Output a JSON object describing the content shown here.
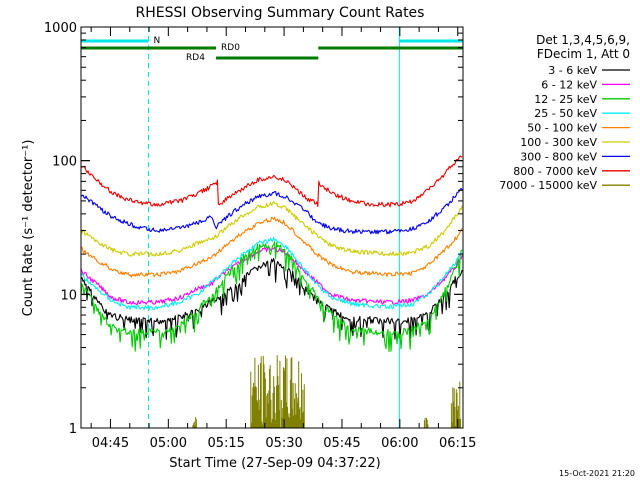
{
  "chart_data": {
    "type": "line",
    "title": "RHESSI Observing Summary Count Rates",
    "xlabel": "Start Time (27-Sep-09 04:37:22)",
    "ylabel": "Count Rate (s⁻¹ detector⁻¹)",
    "y_scale": "log",
    "ylim": [
      1,
      1000
    ],
    "x_unit": "minutes since 04:37:22",
    "xlim": [
      0,
      99
    ],
    "x_ticks": [
      "04:45",
      "05:00",
      "05:15",
      "05:30",
      "05:45",
      "06:00",
      "06:15"
    ],
    "y_ticks": [
      "1",
      "10",
      "100",
      "1000"
    ],
    "legend_header": [
      "Det 1,3,4,5,6,9,",
      "FDecim 1, Att 0"
    ],
    "legend_position": "right",
    "footer": "15-Oct-2021 21:20",
    "annotations": [
      {
        "label": "N",
        "color": "#00e5e5",
        "kind": "night",
        "segments": [
          [
            0,
            17.5
          ],
          [
            82.5,
            99
          ]
        ]
      },
      {
        "label": "RD0",
        "color": "#007a00",
        "kind": "bar",
        "segments": [
          [
            0,
            35
          ],
          [
            61.5,
            99
          ]
        ]
      },
      {
        "label": "RD4",
        "color": "#007a00",
        "kind": "bar",
        "segments": [
          [
            35,
            61.5
          ]
        ]
      }
    ],
    "vertical_lines": [
      {
        "x": 0,
        "color": "#00e5e5",
        "style": "solid"
      },
      {
        "x": 17.5,
        "color": "#00e5e5",
        "style": "dashed"
      },
      {
        "x": 82.5,
        "color": "#00e5e5",
        "style": "solid"
      },
      {
        "x": 99,
        "color": "#00e5e5",
        "style": "dashed"
      }
    ],
    "series": [
      {
        "name": "3 - 6 keV",
        "color": "#000000",
        "points": [
          [
            0,
            13
          ],
          [
            3,
            10
          ],
          [
            6,
            7.5
          ],
          [
            9,
            6.8
          ],
          [
            14,
            6.3
          ],
          [
            20,
            6.3
          ],
          [
            26,
            6.8
          ],
          [
            30,
            7.5
          ],
          [
            34,
            9
          ],
          [
            35,
            9
          ],
          [
            38,
            10.5
          ],
          [
            42,
            13
          ],
          [
            46,
            16
          ],
          [
            50,
            17.5
          ],
          [
            53,
            16
          ],
          [
            56,
            13
          ],
          [
            59,
            10.5
          ],
          [
            61,
            9
          ],
          [
            61.5,
            9
          ],
          [
            65,
            7.5
          ],
          [
            70,
            6.6
          ],
          [
            78,
            6.3
          ],
          [
            85,
            6.3
          ],
          [
            90,
            7.2
          ],
          [
            94,
            9.5
          ],
          [
            97,
            13
          ],
          [
            99,
            15.5
          ]
        ]
      },
      {
        "name": "6 - 12 keV",
        "color": "#ff00ff",
        "points": [
          [
            0,
            15
          ],
          [
            4,
            12
          ],
          [
            8,
            9.5
          ],
          [
            12,
            8.7
          ],
          [
            20,
            8.7
          ],
          [
            26,
            9.5
          ],
          [
            30,
            11
          ],
          [
            34,
            12
          ],
          [
            35,
            13
          ],
          [
            38,
            15
          ],
          [
            42,
            18
          ],
          [
            46,
            21
          ],
          [
            50,
            22
          ],
          [
            53,
            20.5
          ],
          [
            56,
            17
          ],
          [
            59,
            14
          ],
          [
            61,
            12.5
          ],
          [
            61.5,
            12
          ],
          [
            65,
            10
          ],
          [
            70,
            9
          ],
          [
            80,
            8.7
          ],
          [
            86,
            9
          ],
          [
            90,
            10
          ],
          [
            94,
            13
          ],
          [
            97,
            16
          ],
          [
            99,
            20
          ]
        ]
      },
      {
        "name": "12 - 25 keV",
        "color": "#00cc00",
        "points": [
          [
            0,
            12
          ],
          [
            3,
            9
          ],
          [
            6,
            6.5
          ],
          [
            9,
            5.5
          ],
          [
            14,
            5.2
          ],
          [
            20,
            5.2
          ],
          [
            26,
            6
          ],
          [
            30,
            7.5
          ],
          [
            34,
            10
          ],
          [
            35,
            11
          ],
          [
            38,
            14
          ],
          [
            42,
            19
          ],
          [
            46,
            23
          ],
          [
            50,
            24
          ],
          [
            53,
            21
          ],
          [
            56,
            16
          ],
          [
            59,
            12
          ],
          [
            61,
            9.5
          ],
          [
            61.5,
            9
          ],
          [
            65,
            7
          ],
          [
            70,
            5.5
          ],
          [
            78,
            5.2
          ],
          [
            85,
            5.3
          ],
          [
            90,
            6.5
          ],
          [
            94,
            10
          ],
          [
            97,
            16
          ],
          [
            99,
            22
          ]
        ]
      },
      {
        "name": "25 - 50 keV",
        "color": "#00eeee",
        "points": [
          [
            0,
            14
          ],
          [
            4,
            11
          ],
          [
            8,
            9
          ],
          [
            12,
            8
          ],
          [
            20,
            8
          ],
          [
            26,
            8.8
          ],
          [
            30,
            10
          ],
          [
            34,
            12.5
          ],
          [
            35,
            13
          ],
          [
            38,
            16
          ],
          [
            42,
            20
          ],
          [
            46,
            24
          ],
          [
            50,
            26
          ],
          [
            53,
            23
          ],
          [
            56,
            18
          ],
          [
            59,
            14
          ],
          [
            61,
            12
          ],
          [
            61.5,
            11.5
          ],
          [
            65,
            9.5
          ],
          [
            70,
            8.5
          ],
          [
            80,
            8
          ],
          [
            86,
            8.5
          ],
          [
            90,
            10
          ],
          [
            94,
            13.5
          ],
          [
            97,
            17
          ],
          [
            99,
            21
          ]
        ]
      },
      {
        "name": "50 - 100 keV",
        "color": "#ff8000",
        "points": [
          [
            0,
            22
          ],
          [
            4,
            18
          ],
          [
            8,
            15.5
          ],
          [
            12,
            14
          ],
          [
            20,
            14
          ],
          [
            26,
            15
          ],
          [
            30,
            17
          ],
          [
            34,
            19
          ],
          [
            35,
            20
          ],
          [
            38,
            24
          ],
          [
            42,
            29
          ],
          [
            46,
            34
          ],
          [
            50,
            37
          ],
          [
            53,
            34
          ],
          [
            56,
            28
          ],
          [
            59,
            23
          ],
          [
            61,
            20
          ],
          [
            61.5,
            19.5
          ],
          [
            65,
            16.5
          ],
          [
            70,
            14.8
          ],
          [
            80,
            14
          ],
          [
            86,
            14.5
          ],
          [
            90,
            16.5
          ],
          [
            94,
            21
          ],
          [
            97,
            26
          ],
          [
            99,
            31
          ]
        ]
      },
      {
        "name": "100 - 300 keV",
        "color": "#cccc00",
        "points": [
          [
            0,
            30
          ],
          [
            4,
            25
          ],
          [
            8,
            21.5
          ],
          [
            12,
            20
          ],
          [
            20,
            20
          ],
          [
            26,
            21.5
          ],
          [
            30,
            24
          ],
          [
            34,
            26
          ],
          [
            35,
            27
          ],
          [
            38,
            32
          ],
          [
            42,
            39
          ],
          [
            46,
            45
          ],
          [
            50,
            48
          ],
          [
            53,
            44
          ],
          [
            56,
            37
          ],
          [
            59,
            31
          ],
          [
            61,
            28
          ],
          [
            61.5,
            27
          ],
          [
            65,
            23
          ],
          [
            70,
            21
          ],
          [
            80,
            20
          ],
          [
            86,
            20.5
          ],
          [
            90,
            23
          ],
          [
            94,
            29
          ],
          [
            97,
            38
          ],
          [
            99,
            47
          ]
        ]
      },
      {
        "name": "300 - 800 keV",
        "color": "#0000ee",
        "points": [
          [
            0,
            57
          ],
          [
            4,
            46
          ],
          [
            8,
            38
          ],
          [
            12,
            34
          ],
          [
            16,
            31
          ],
          [
            20,
            30
          ],
          [
            26,
            31.5
          ],
          [
            30,
            34
          ],
          [
            34,
            38
          ],
          [
            35,
            32
          ],
          [
            38,
            38
          ],
          [
            42,
            47
          ],
          [
            46,
            54
          ],
          [
            50,
            57
          ],
          [
            53,
            54
          ],
          [
            56,
            47
          ],
          [
            59,
            40
          ],
          [
            61,
            35
          ],
          [
            61.5,
            34
          ],
          [
            65,
            31
          ],
          [
            70,
            29.5
          ],
          [
            80,
            29.5
          ],
          [
            86,
            31
          ],
          [
            90,
            35
          ],
          [
            94,
            44
          ],
          [
            97,
            54
          ],
          [
            99,
            62
          ]
        ]
      },
      {
        "name": "800 - 7000 keV",
        "color": "#ee0000",
        "points": [
          [
            0,
            92
          ],
          [
            4,
            72
          ],
          [
            8,
            58
          ],
          [
            12,
            51
          ],
          [
            16,
            48
          ],
          [
            20,
            47
          ],
          [
            26,
            50
          ],
          [
            30,
            56
          ],
          [
            34,
            65
          ],
          [
            35.5,
            70
          ],
          [
            35.6,
            47
          ],
          [
            38,
            52
          ],
          [
            42,
            62
          ],
          [
            46,
            72
          ],
          [
            50,
            76
          ],
          [
            53,
            71
          ],
          [
            56,
            60
          ],
          [
            59,
            51
          ],
          [
            61,
            48
          ],
          [
            61.5,
            46
          ],
          [
            61.6,
            68
          ],
          [
            65,
            57
          ],
          [
            70,
            50
          ],
          [
            75,
            47
          ],
          [
            82,
            47
          ],
          [
            86,
            50
          ],
          [
            90,
            60
          ],
          [
            94,
            78
          ],
          [
            97,
            98
          ],
          [
            99,
            110
          ]
        ]
      },
      {
        "name": "7000 - 15000 keV",
        "color": "#808000",
        "points": [
          [
            0,
            1
          ],
          [
            99,
            1
          ]
        ]
      }
    ]
  }
}
